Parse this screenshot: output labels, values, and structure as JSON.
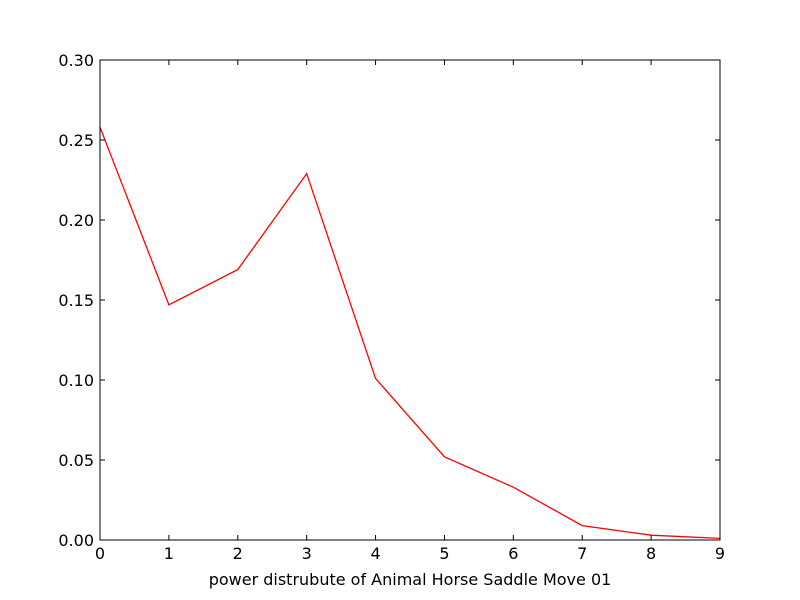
{
  "chart_data": {
    "type": "line",
    "title": "",
    "xlabel": "power distrubute of Animal Horse Saddle Move 01",
    "ylabel": "",
    "xlim": [
      0,
      9
    ],
    "ylim": [
      0,
      0.3
    ],
    "x_ticks": [
      0,
      1,
      2,
      3,
      4,
      5,
      6,
      7,
      8,
      9
    ],
    "x_tick_labels": [
      "0",
      "1",
      "2",
      "3",
      "4",
      "5",
      "6",
      "7",
      "8",
      "9"
    ],
    "y_ticks": [
      0.0,
      0.05,
      0.1,
      0.15,
      0.2,
      0.25,
      0.3
    ],
    "y_tick_labels": [
      "0.00",
      "0.05",
      "0.10",
      "0.15",
      "0.20",
      "0.25",
      "0.30"
    ],
    "grid": false,
    "legend": "none",
    "series": [
      {
        "color": "#ff0000",
        "x": [
          0,
          1,
          2,
          3,
          4,
          5,
          6,
          7,
          8,
          9
        ],
        "values": [
          0.258,
          0.147,
          0.169,
          0.229,
          0.101,
          0.052,
          0.033,
          0.009,
          0.003,
          0.001
        ]
      }
    ]
  }
}
